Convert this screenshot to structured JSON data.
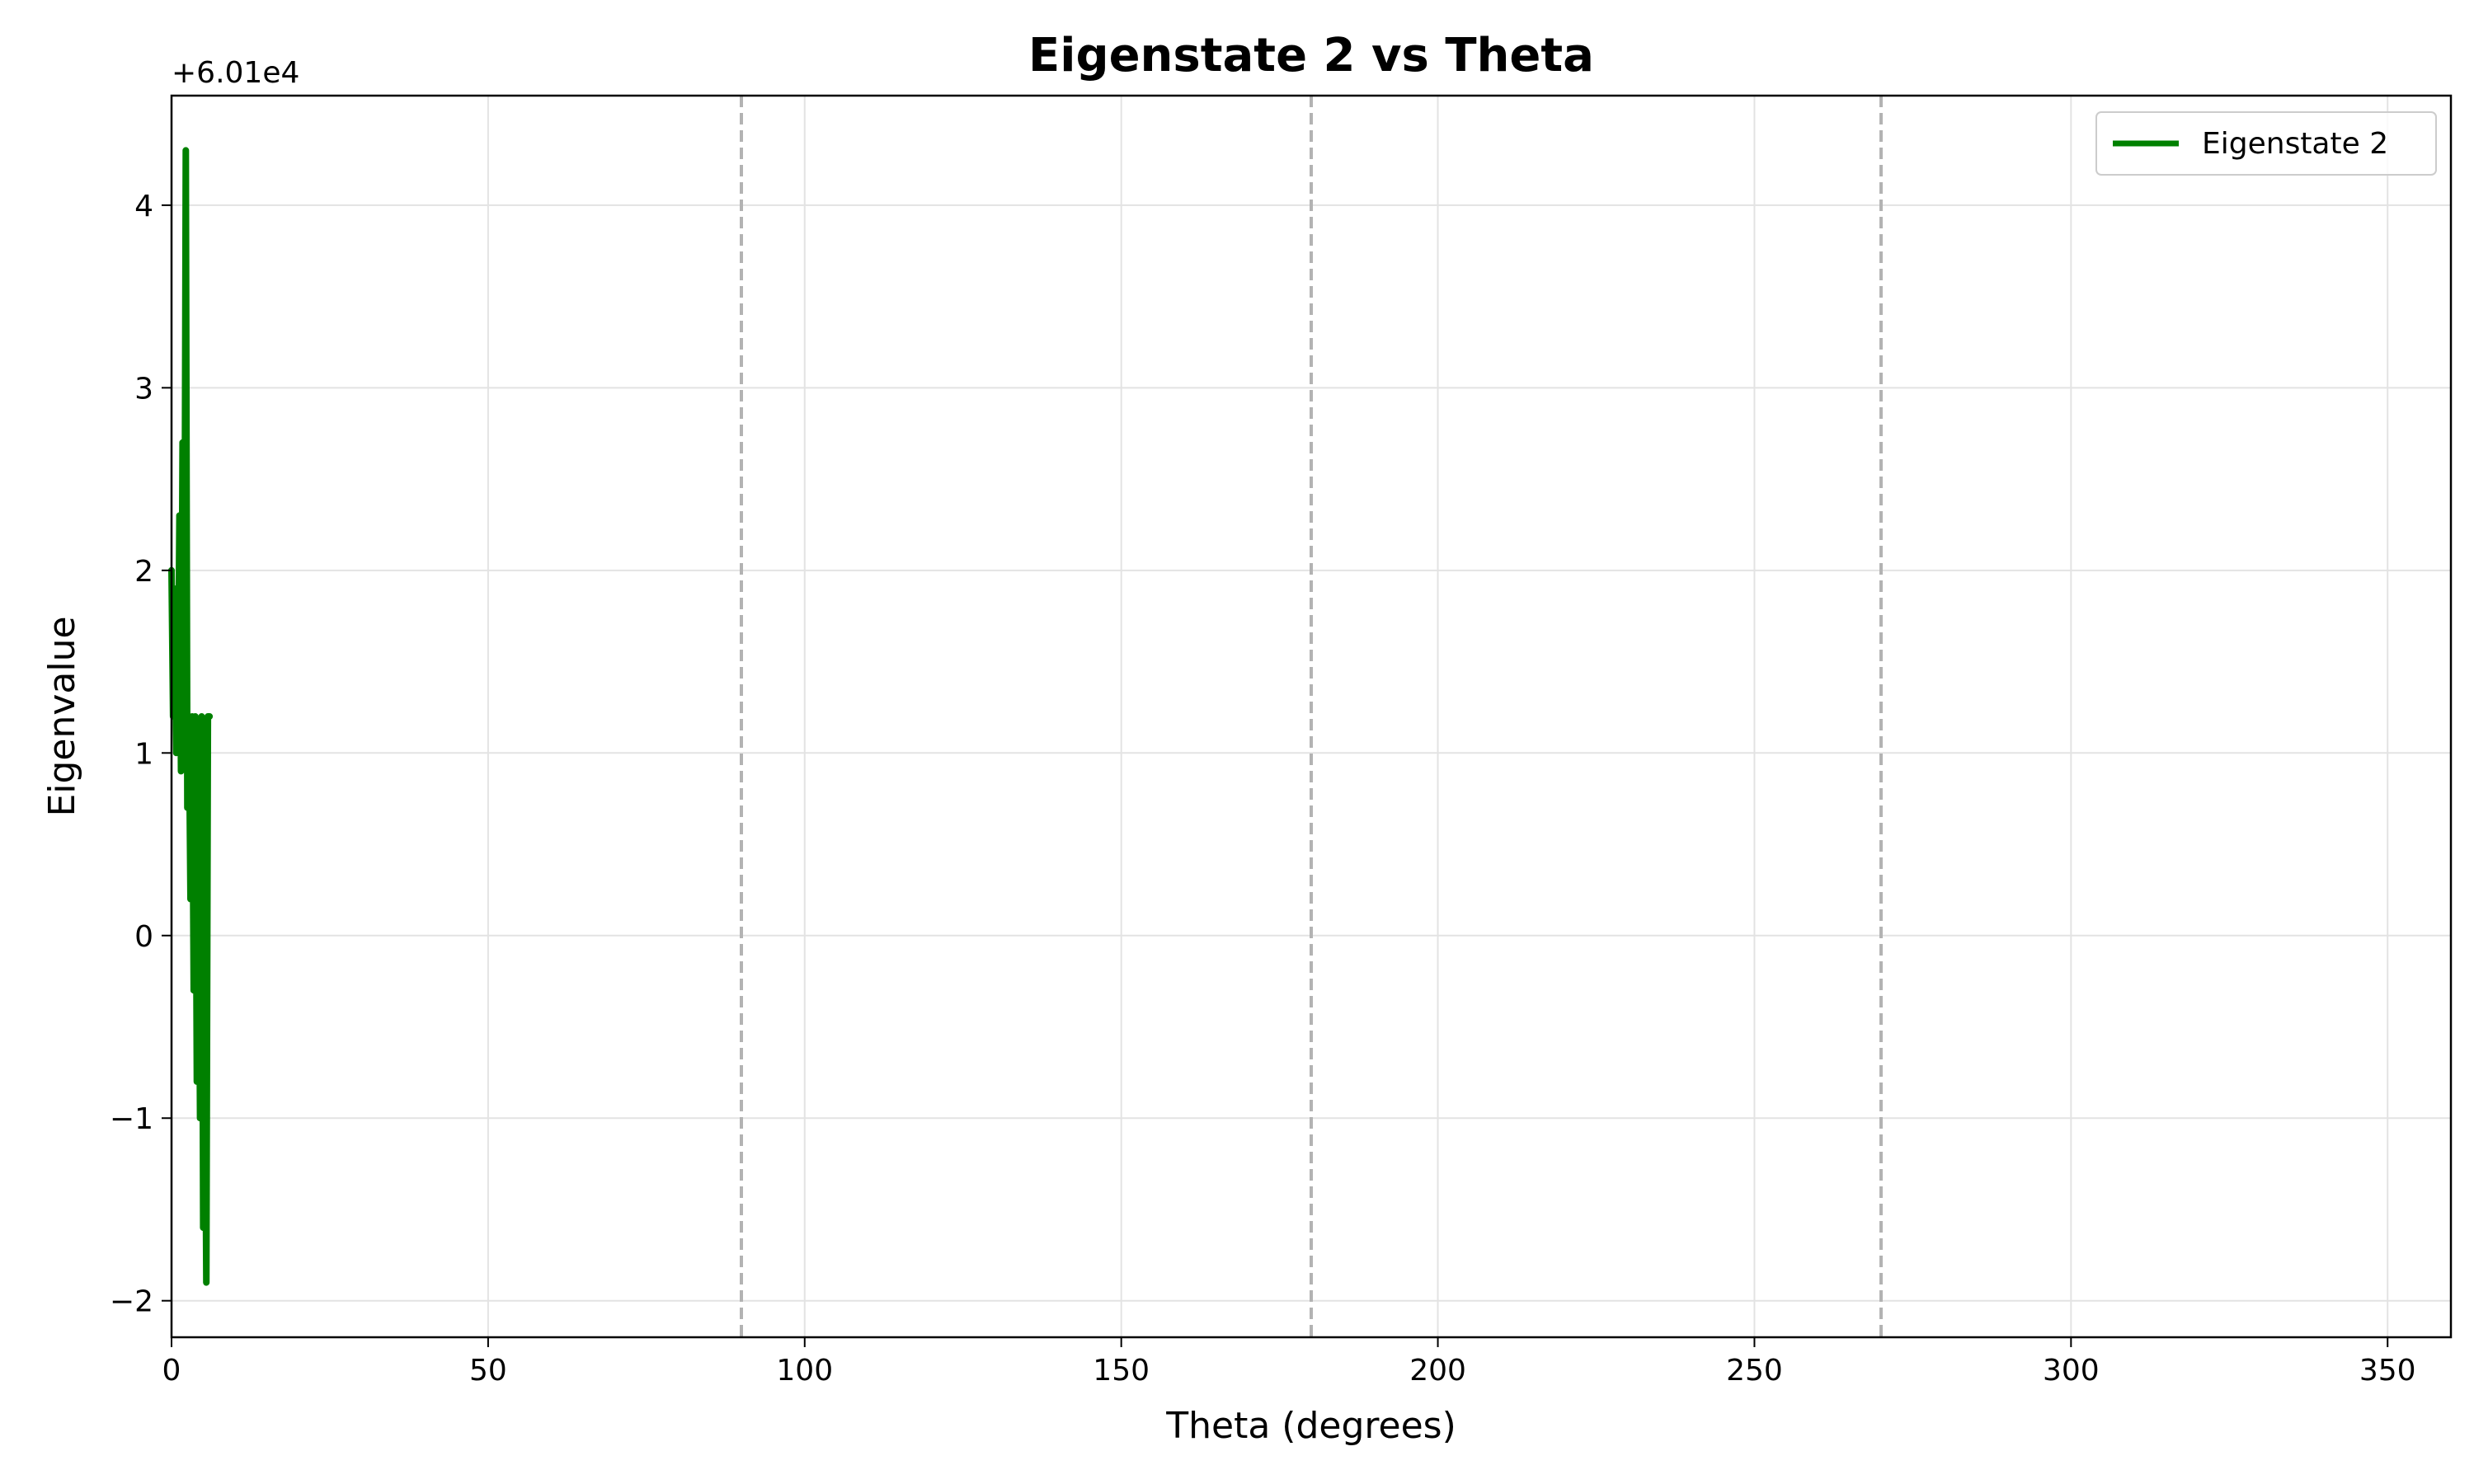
{
  "chart_data": {
    "type": "line",
    "title": "Eigenstate 2 vs Theta",
    "xlabel": "Theta (degrees)",
    "ylabel": "Eigenvalue",
    "offset_text": "+6.01e4",
    "xlim": [
      0,
      360
    ],
    "ylim": [
      -2.2,
      4.6
    ],
    "xticks": [
      0,
      50,
      100,
      150,
      200,
      250,
      300,
      350
    ],
    "xtick_labels": [
      "0",
      "50",
      "100",
      "150",
      "200",
      "250",
      "300",
      "350"
    ],
    "yticks": [
      -2,
      -1,
      0,
      1,
      2,
      3,
      4
    ],
    "ytick_labels": [
      "−2",
      "−1",
      "0",
      "1",
      "2",
      "3",
      "4"
    ],
    "grid": true,
    "vlines": [
      90,
      180,
      270
    ],
    "legend_position": "top-right",
    "series": [
      {
        "name": "Eigenstate 2",
        "color": "#008000",
        "x": [
          0,
          0.25,
          0.5,
          0.75,
          1.0,
          1.25,
          1.5,
          1.75,
          2.0,
          2.25,
          2.5,
          2.75,
          3.0,
          3.25,
          3.5,
          3.75,
          4.0,
          4.25,
          4.5,
          4.75,
          5.0,
          5.25,
          5.5,
          5.75,
          6.0
        ],
        "y": [
          2.0,
          1.2,
          1.9,
          1.0,
          1.2,
          2.3,
          0.9,
          2.7,
          1.2,
          4.3,
          0.7,
          1.2,
          0.2,
          1.2,
          -0.3,
          1.2,
          -0.8,
          0.6,
          -1.0,
          1.2,
          -1.6,
          -0.4,
          -1.9,
          1.2,
          1.2
        ]
      }
    ]
  }
}
